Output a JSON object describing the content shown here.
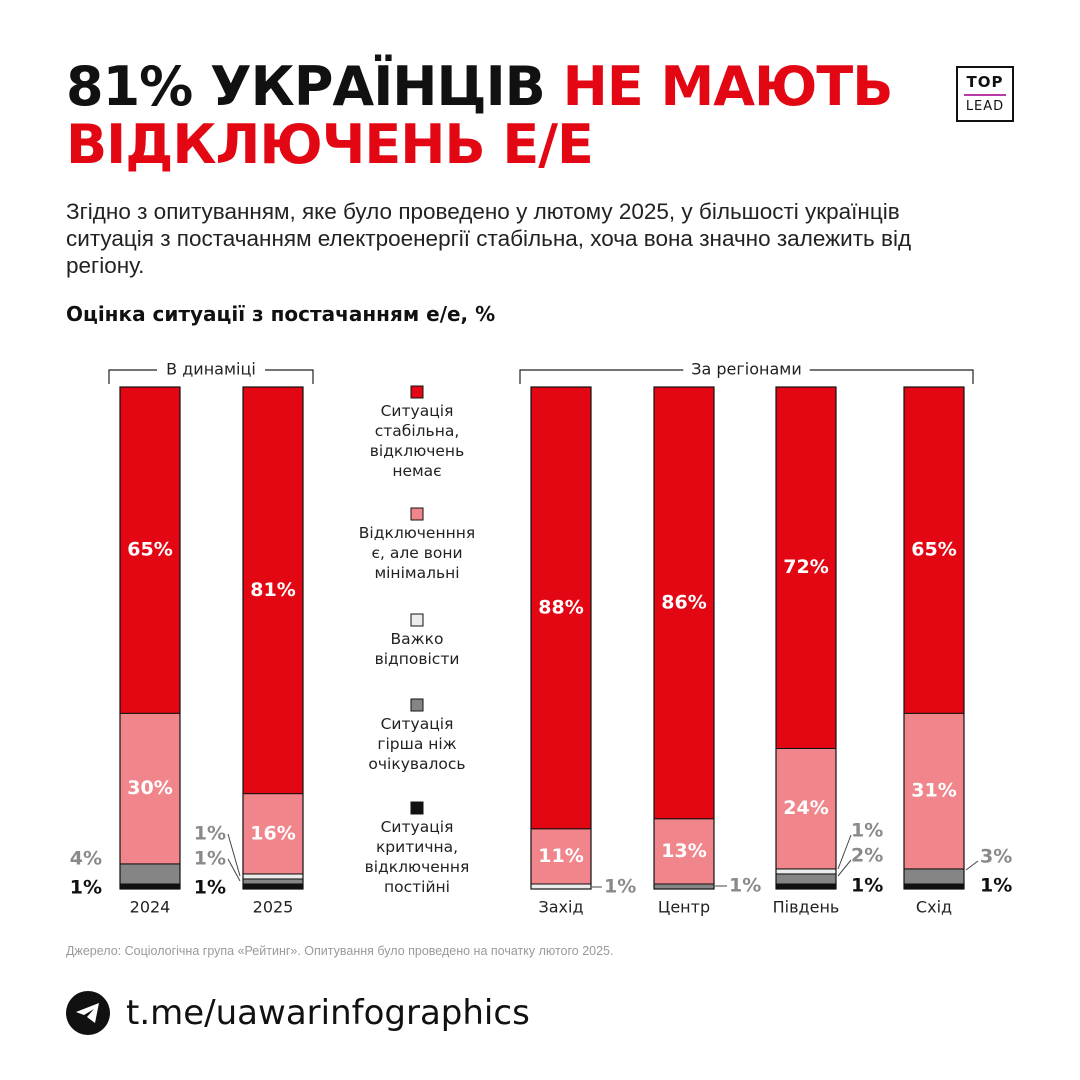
{
  "header": {
    "title_part1": "81% УКРАЇНЦІВ ",
    "title_part2": "НЕ МАЮТЬ ВІДКЛЮЧЕНЬ Е/Е",
    "logo_top": "TOP",
    "logo_bottom": "LEAD"
  },
  "subtitle": "Згідно з опитуванням, яке було проведено у лютому 2025, у більшості українців ситуація з постачанням електроенергії стабільна, хоча вона значно залежить від регіону.",
  "colors": {
    "stable": "#e30613",
    "minimal": "#f0868b",
    "hard": "#ececec",
    "worse": "#858585",
    "critical": "#111111",
    "label_gray": "#8a8a8a"
  },
  "chart_data": {
    "type": "bar",
    "stacked": true,
    "title": "Оцінка ситуації з постачанням е/е, %",
    "unit": "%",
    "groups": [
      {
        "label": "В динаміці",
        "categories": [
          "2024",
          "2025"
        ]
      },
      {
        "label": "За регіонами",
        "categories": [
          "Захід",
          "Центр",
          "Південь",
          "Схід"
        ]
      }
    ],
    "categories": [
      "2024",
      "2025",
      "Захід",
      "Центр",
      "Південь",
      "Схід"
    ],
    "series": [
      {
        "name": "Ситуація стабільна, відключень немає",
        "color_key": "stable",
        "values": [
          65,
          81,
          88,
          86,
          72,
          65
        ]
      },
      {
        "name": "Відключенння є, але вони мінімальні",
        "color_key": "minimal",
        "values": [
          30,
          16,
          11,
          13,
          24,
          31
        ]
      },
      {
        "name": "Важко відповісти",
        "color_key": "hard",
        "values": [
          0,
          1,
          1,
          0,
          1,
          0
        ]
      },
      {
        "name": "Ситуація гірша ніж очікувалось",
        "color_key": "worse",
        "values": [
          4,
          1,
          0,
          1,
          2,
          3
        ]
      },
      {
        "name": "Ситуація критична, відключення постійні",
        "color_key": "critical",
        "values": [
          1,
          1,
          0,
          0,
          1,
          1
        ]
      }
    ],
    "legend_placement": "center",
    "grid": false
  },
  "source": "Джерело: Соціологічна група «Рейтинг». Опитування було проведено на початку лютого 2025.",
  "footer": {
    "link": "t.me/uawarinfographics",
    "icon": "telegram-icon"
  }
}
